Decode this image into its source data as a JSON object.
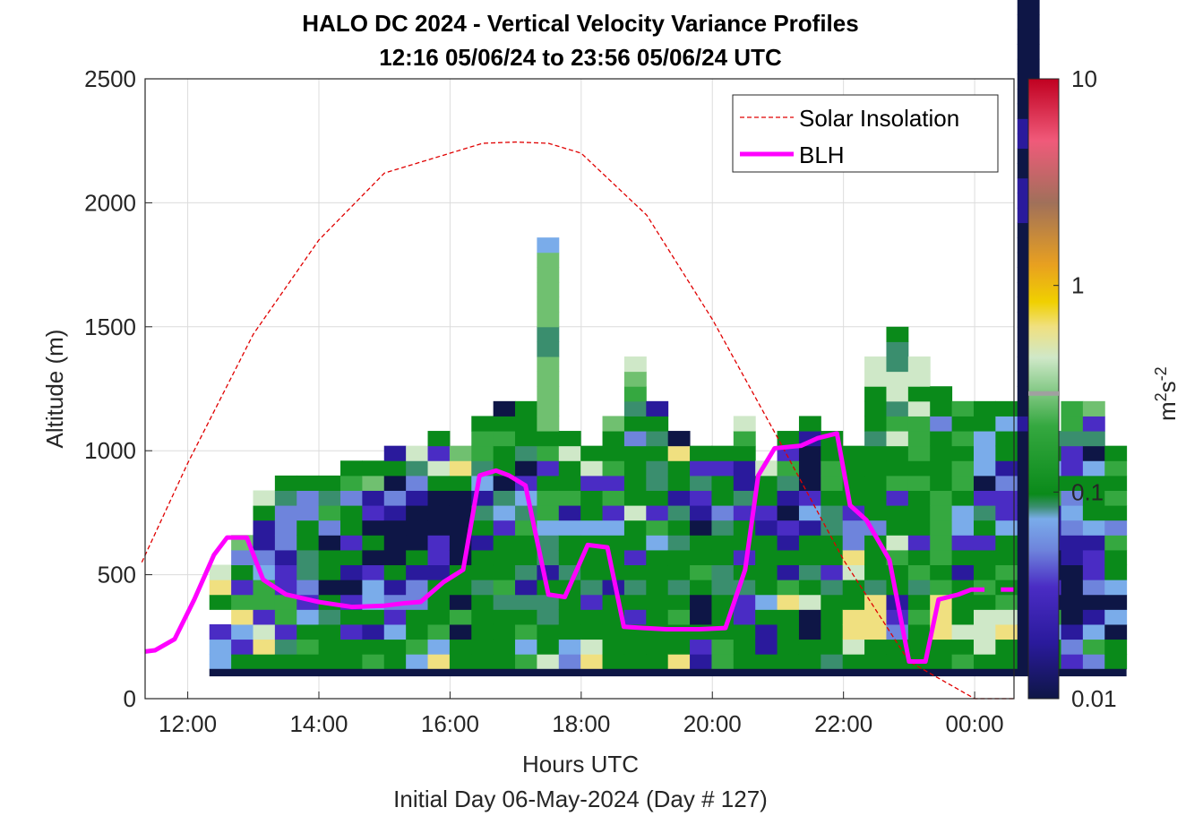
{
  "chart_data": {
    "type": "heatmap",
    "title": "HALO DC 2024 - Vertical Velocity Variance Profiles",
    "subtitle": "12:16 05/06/24 to 23:56 05/06/24  UTC",
    "xlabel": "Hours UTC",
    "footer": "Initial Day 06-May-2024 (Day # 127)",
    "ylabel": "Altitude (m)",
    "xlim": [
      11.35,
      24.6
    ],
    "ylim": [
      0,
      2500
    ],
    "grid": true,
    "x_ticks": [
      {
        "value": 12,
        "label": "12:00"
      },
      {
        "value": 14,
        "label": "14:00"
      },
      {
        "value": 16,
        "label": "16:00"
      },
      {
        "value": 18,
        "label": "18:00"
      },
      {
        "value": 20,
        "label": "20:00"
      },
      {
        "value": 22,
        "label": "22:00"
      },
      {
        "value": 24,
        "label": "00:00"
      }
    ],
    "y_ticks": [
      {
        "value": 0,
        "label": "0"
      },
      {
        "value": 500,
        "label": "500"
      },
      {
        "value": 1000,
        "label": "1000"
      },
      {
        "value": 1500,
        "label": "1500"
      },
      {
        "value": 2000,
        "label": "2000"
      },
      {
        "value": 2500,
        "label": "2500"
      }
    ],
    "colorbar": {
      "label_base": "m",
      "label_sup1": "2",
      "label_mid": "s",
      "label_sup2": "-2",
      "scale": "log",
      "range": [
        0.01,
        10
      ],
      "ticks": [
        {
          "value": 0.01,
          "label": "0.01"
        },
        {
          "value": 0.1,
          "label": "0.1"
        },
        {
          "value": 1,
          "label": "1"
        },
        {
          "value": 10,
          "label": "10"
        }
      ],
      "marker_value": 0.3
    },
    "legend": {
      "placement": "top-right",
      "entries": [
        {
          "label": "Solar Insolation",
          "color": "#e00000",
          "style": "dashed"
        },
        {
          "label": "BLH",
          "color": "#ff00ff",
          "style": "solid"
        }
      ]
    },
    "heatmap": {
      "x_start": 12.33,
      "x_step": 0.333,
      "y_step": 60,
      "bottom_row_altitude": 120,
      "columns": [
        "BBMUGYW",
        "GMBYRMGPX",
        "GYWMRRBPVVGW",
        "GSMRRMMVPPPSG",
        "GRGBMPSSGGPPG",
        "GGGSGNGGNPRSG",
        "GGMGMNVGMGGPRG",
        "RGVGBBMNGNMVXG",
        "GGBMPVGNNNVPNGV",
        "BRGGPPVGNNNVPSW",
        "YBRGGGVMMNNNGWMG",
        "GGNRNGGNNNNNGYX",
        "GGGGGSGGVGSVBSRRG",
        "GGGGSRGGGMBSNGGRGN",
        "RBRGSVSGGRSBMNSGGG",
        "WGGSSGVSSBRRGMRGXXXXXSSXXXXXB",
        "PBGGGGSGGBVRGGWG",
        "YWGGMSGGGBGGMWG",
        "GGGGGVGGGBMRMRGGX",
        "GGGMGSGMGGWGGGGPGSRXW",
        "GGGGGGGGBRMGSSGSGV",
        "YGGRGSGGSGSVGGYN",
        "VMGNNGRGGNVMSMG",
        "RRGGGSSGGSPGGMG",
        "GGGMMSGMGGMSVVGRW",
        "GVVGBGGGGVMGGW",
        "GGGGYRVGVMNVSRMG",
        "GGNNWGSGGVBMNNNVG",
        "SGGGGSMGGSSGRRGG",
        "GWYYGGWYPPMGGGG",
        "GGYYYSGGGPGGGGGSGGGWW",
        "GGPMVGGRWGGMRGGWRSWWSSG",
        "GGGRGSRGMGGGRGRRRWGWW",
        "GGYYYRGRRRRRGGGGPGG",
        "RGWGGGVGMBBGRRGRGR",
        "GWWWGRGGMGSMNBBBGG",
        "GGYWRGRGGBMMPVGGBG",
        "NNNNNNNNNNNNNNNNVNNNNNNNNNNNNNVVVNNVVNNNNNNNN",
        "GGBRNMNNVVVRGBGS",
        "MPVNNNNVVPBPGMMSRR",
        "PRBVNPMMVBGGGBNSMX",
        "GGNBNBGGRPGRGRG"
      ],
      "palette": {
        "N": "#0e1646",
        "V": "#2a1a9c",
        "M": "#4a2cc4",
        "P": "#6e84dc",
        "B": "#7aacea",
        "S": "#3a8e6e",
        "G": "#0a8a1a",
        "R": "#35a840",
        "X": "#70c070",
        "W": "#cfe8c8",
        "Y": "#f0e080",
        "O": "#f0c000"
      }
    },
    "solar_insolation": {
      "x": [
        11.3,
        12,
        13,
        14,
        15,
        16,
        16.5,
        17,
        17.5,
        18,
        19,
        20,
        21,
        22,
        23,
        24,
        24.6
      ],
      "y": [
        550,
        950,
        1470,
        1850,
        2120,
        2200,
        2240,
        2245,
        2240,
        2200,
        1950,
        1530,
        1050,
        560,
        150,
        0,
        0
      ]
    },
    "blh": {
      "x": [
        11.35,
        11.5,
        11.8,
        12.1,
        12.4,
        12.6,
        12.9,
        13.15,
        13.5,
        14,
        14.5,
        15,
        15.3,
        15.55,
        15.9,
        16.2,
        16.45,
        16.7,
        16.9,
        17.15,
        17.5,
        17.75,
        18.1,
        18.4,
        18.65,
        18.95,
        19.3,
        19.8,
        20.2,
        20.5,
        20.7,
        20.95,
        21.35,
        21.6,
        21.9,
        22.1,
        22.35,
        22.7,
        23.0,
        23.25,
        23.45,
        23.75,
        23.95,
        24.15
      ],
      "y": [
        190,
        195,
        240,
        400,
        580,
        650,
        650,
        480,
        420,
        390,
        370,
        375,
        385,
        390,
        470,
        520,
        900,
        920,
        900,
        860,
        420,
        410,
        620,
        610,
        290,
        285,
        280,
        280,
        285,
        520,
        900,
        1010,
        1020,
        1050,
        1070,
        780,
        720,
        560,
        150,
        150,
        400,
        420,
        440,
        440
      ]
    }
  }
}
